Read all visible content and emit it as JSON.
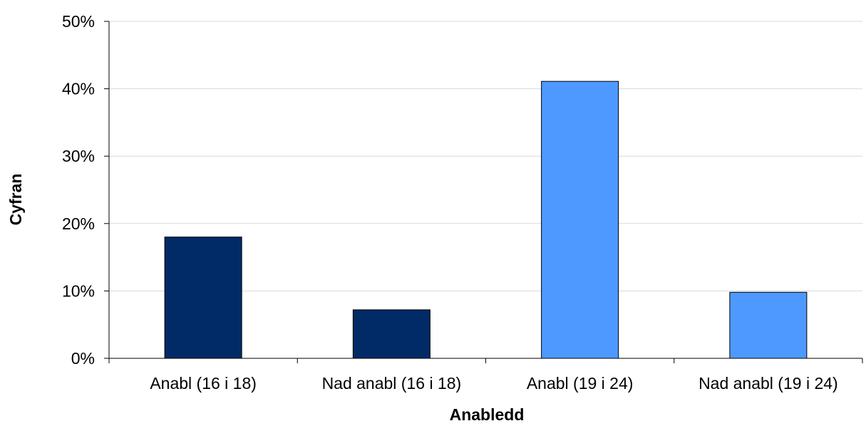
{
  "chart_data": {
    "type": "bar",
    "categories": [
      "Anabl (16 i 18)",
      "Nad anabl (16 i 18)",
      "Anabl (19 i 24)",
      "Nad anabl (19 i 24)"
    ],
    "values": [
      18.0,
      7.2,
      41.1,
      9.8
    ],
    "bar_colors": [
      "#002b66",
      "#002b66",
      "#4d99ff",
      "#4d99ff"
    ],
    "xlabel": "Anabledd",
    "ylabel": "Cyfran",
    "ylim": [
      0,
      50
    ],
    "yticks": [
      0,
      10,
      20,
      30,
      40,
      50
    ],
    "ytick_labels": [
      "0%",
      "10%",
      "20%",
      "30%",
      "40%",
      "50%"
    ],
    "grid": true,
    "legend": "none"
  }
}
